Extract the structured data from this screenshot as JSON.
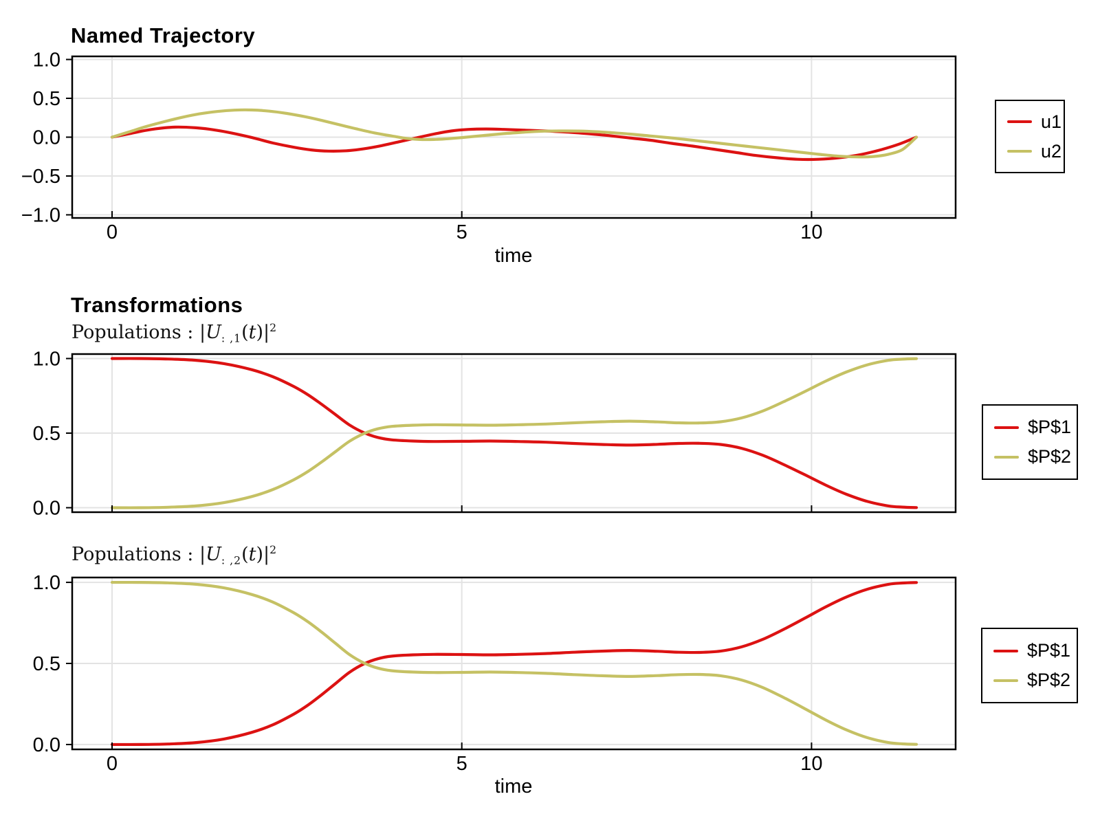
{
  "colors": {
    "red": "#dc1212",
    "olive": "#c5c164",
    "grid": "#e3e3e3",
    "spine": "#000000"
  },
  "panel1": {
    "title": "Named Trajectory",
    "xlabel": "time",
    "yticks": [
      "1.0",
      "0.5",
      "0.0",
      "−0.5",
      "−1.0"
    ],
    "xticks": [
      "0",
      "5",
      "10"
    ],
    "legend": [
      {
        "label": "u1",
        "color": "#dc1212"
      },
      {
        "label": "u2",
        "color": "#c5c164"
      }
    ]
  },
  "panel2": {
    "title": "Transformations",
    "subtitle": {
      "prefix": "Populations : ",
      "bar1": "|",
      "var": "U",
      "sub": ": ,1",
      "open": "(",
      "tvar": "t",
      "close": ")|",
      "sup": "2"
    },
    "yticks": [
      "1.0",
      "0.5",
      "0.0"
    ],
    "legend": [
      {
        "label": "$P$1",
        "color": "#dc1212"
      },
      {
        "label": "$P$2",
        "color": "#c5c164"
      }
    ]
  },
  "panel3": {
    "subtitle": {
      "prefix": "Populations : ",
      "bar1": "|",
      "var": "U",
      "sub": ": ,2",
      "open": "(",
      "tvar": "t",
      "close": ")|",
      "sup": "2"
    },
    "xlabel": "time",
    "yticks": [
      "1.0",
      "0.5",
      "0.0"
    ],
    "xticks": [
      "0",
      "5",
      "10"
    ],
    "legend": [
      {
        "label": "$P$1",
        "color": "#dc1212"
      },
      {
        "label": "$P$2",
        "color": "#c5c164"
      }
    ]
  },
  "chart_data": [
    {
      "type": "line",
      "title": "Named Trajectory",
      "xlabel": "time",
      "xlim": [
        -0.57,
        12.06
      ],
      "ylim": [
        -1.04,
        1.04
      ],
      "xticks": [
        0,
        5,
        10
      ],
      "yticks": [
        1.0,
        0.5,
        0.0,
        -0.5,
        -1.0
      ],
      "grid": true,
      "legend_position": "outer-right",
      "series": [
        {
          "name": "u1",
          "color": "#dc1212",
          "points": [
            [
              0,
              0
            ],
            [
              0.25,
              0.045
            ],
            [
              0.5,
              0.09
            ],
            [
              0.75,
              0.12
            ],
            [
              0.95,
              0.13
            ],
            [
              1.2,
              0.12
            ],
            [
              1.45,
              0.095
            ],
            [
              1.7,
              0.055
            ],
            [
              2,
              -0.005
            ],
            [
              2.3,
              -0.075
            ],
            [
              2.6,
              -0.13
            ],
            [
              2.85,
              -0.165
            ],
            [
              3.1,
              -0.18
            ],
            [
              3.35,
              -0.175
            ],
            [
              3.6,
              -0.15
            ],
            [
              3.85,
              -0.11
            ],
            [
              4.1,
              -0.06
            ],
            [
              4.35,
              -0.01
            ],
            [
              4.6,
              0.04
            ],
            [
              4.85,
              0.08
            ],
            [
              5.1,
              0.1
            ],
            [
              5.35,
              0.105
            ],
            [
              5.6,
              0.1
            ],
            [
              5.9,
              0.09
            ],
            [
              6.2,
              0.08
            ],
            [
              6.5,
              0.065
            ],
            [
              6.8,
              0.045
            ],
            [
              7.1,
              0.02
            ],
            [
              7.4,
              -0.01
            ],
            [
              7.7,
              -0.04
            ],
            [
              8,
              -0.08
            ],
            [
              8.3,
              -0.115
            ],
            [
              8.6,
              -0.155
            ],
            [
              8.9,
              -0.195
            ],
            [
              9.2,
              -0.235
            ],
            [
              9.5,
              -0.265
            ],
            [
              9.8,
              -0.285
            ],
            [
              10.1,
              -0.285
            ],
            [
              10.4,
              -0.265
            ],
            [
              10.7,
              -0.225
            ],
            [
              11,
              -0.16
            ],
            [
              11.25,
              -0.09
            ],
            [
              11.5,
              0
            ]
          ]
        },
        {
          "name": "u2",
          "color": "#c5c164",
          "points": [
            [
              0,
              0
            ],
            [
              0.25,
              0.07
            ],
            [
              0.5,
              0.14
            ],
            [
              0.75,
              0.2
            ],
            [
              1,
              0.255
            ],
            [
              1.25,
              0.3
            ],
            [
              1.5,
              0.33
            ],
            [
              1.75,
              0.348
            ],
            [
              2,
              0.35
            ],
            [
              2.25,
              0.335
            ],
            [
              2.5,
              0.305
            ],
            [
              2.75,
              0.265
            ],
            [
              3,
              0.215
            ],
            [
              3.25,
              0.16
            ],
            [
              3.5,
              0.105
            ],
            [
              3.75,
              0.055
            ],
            [
              4,
              0.015
            ],
            [
              4.2,
              -0.015
            ],
            [
              4.4,
              -0.03
            ],
            [
              4.6,
              -0.03
            ],
            [
              4.8,
              -0.02
            ],
            [
              5,
              -0.005
            ],
            [
              5.3,
              0.02
            ],
            [
              5.6,
              0.045
            ],
            [
              5.9,
              0.065
            ],
            [
              6.2,
              0.078
            ],
            [
              6.5,
              0.08
            ],
            [
              6.8,
              0.075
            ],
            [
              7.1,
              0.06
            ],
            [
              7.4,
              0.04
            ],
            [
              7.7,
              0.015
            ],
            [
              8,
              -0.01
            ],
            [
              8.3,
              -0.04
            ],
            [
              8.6,
              -0.07
            ],
            [
              8.9,
              -0.1
            ],
            [
              9.2,
              -0.13
            ],
            [
              9.5,
              -0.16
            ],
            [
              9.8,
              -0.19
            ],
            [
              10.1,
              -0.22
            ],
            [
              10.4,
              -0.245
            ],
            [
              10.7,
              -0.255
            ],
            [
              10.9,
              -0.248
            ],
            [
              11.1,
              -0.22
            ],
            [
              11.3,
              -0.16
            ],
            [
              11.5,
              0
            ]
          ]
        }
      ]
    },
    {
      "type": "line",
      "title": "Populations : |U_{:,1}(t)|^2",
      "xlim": [
        -0.57,
        12.06
      ],
      "ylim": [
        -0.03,
        1.03
      ],
      "xticks": [
        0,
        5,
        10
      ],
      "yticks": [
        1.0,
        0.5,
        0.0
      ],
      "grid": true,
      "legend_position": "outer-right",
      "series": [
        {
          "name": "$P$1",
          "color": "#dc1212",
          "points": [
            [
              0,
              1
            ],
            [
              0.4,
              1
            ],
            [
              0.8,
              0.997
            ],
            [
              1.2,
              0.988
            ],
            [
              1.6,
              0.966
            ],
            [
              2,
              0.925
            ],
            [
              2.3,
              0.878
            ],
            [
              2.6,
              0.812
            ],
            [
              2.8,
              0.757
            ],
            [
              3,
              0.692
            ],
            [
              3.2,
              0.622
            ],
            [
              3.4,
              0.553
            ],
            [
              3.6,
              0.503
            ],
            [
              3.8,
              0.471
            ],
            [
              4,
              0.455
            ],
            [
              4.3,
              0.447
            ],
            [
              4.6,
              0.444
            ],
            [
              5,
              0.445
            ],
            [
              5.4,
              0.447
            ],
            [
              5.8,
              0.444
            ],
            [
              6.2,
              0.439
            ],
            [
              6.6,
              0.431
            ],
            [
              7,
              0.424
            ],
            [
              7.4,
              0.42
            ],
            [
              7.8,
              0.425
            ],
            [
              8.1,
              0.431
            ],
            [
              8.4,
              0.432
            ],
            [
              8.7,
              0.424
            ],
            [
              9,
              0.398
            ],
            [
              9.3,
              0.352
            ],
            [
              9.6,
              0.29
            ],
            [
              9.9,
              0.222
            ],
            [
              10.2,
              0.152
            ],
            [
              10.5,
              0.09
            ],
            [
              10.8,
              0.042
            ],
            [
              11.1,
              0.012
            ],
            [
              11.3,
              0.004
            ],
            [
              11.5,
              0.001
            ]
          ]
        },
        {
          "name": "$P$2",
          "color": "#c5c164",
          "points": [
            [
              0,
              0
            ],
            [
              0.4,
              0
            ],
            [
              0.8,
              0.003
            ],
            [
              1.2,
              0.012
            ],
            [
              1.6,
              0.034
            ],
            [
              2,
              0.075
            ],
            [
              2.3,
              0.122
            ],
            [
              2.6,
              0.188
            ],
            [
              2.8,
              0.243
            ],
            [
              3,
              0.308
            ],
            [
              3.2,
              0.378
            ],
            [
              3.4,
              0.447
            ],
            [
              3.6,
              0.497
            ],
            [
              3.8,
              0.529
            ],
            [
              4,
              0.545
            ],
            [
              4.3,
              0.553
            ],
            [
              4.6,
              0.556
            ],
            [
              5,
              0.555
            ],
            [
              5.4,
              0.553
            ],
            [
              5.8,
              0.556
            ],
            [
              6.2,
              0.561
            ],
            [
              6.6,
              0.569
            ],
            [
              7,
              0.576
            ],
            [
              7.4,
              0.58
            ],
            [
              7.8,
              0.575
            ],
            [
              8.1,
              0.569
            ],
            [
              8.4,
              0.568
            ],
            [
              8.7,
              0.576
            ],
            [
              9,
              0.602
            ],
            [
              9.3,
              0.648
            ],
            [
              9.6,
              0.71
            ],
            [
              9.9,
              0.778
            ],
            [
              10.2,
              0.848
            ],
            [
              10.5,
              0.91
            ],
            [
              10.8,
              0.958
            ],
            [
              11.1,
              0.988
            ],
            [
              11.3,
              0.996
            ],
            [
              11.5,
              0.999
            ]
          ]
        }
      ]
    },
    {
      "type": "line",
      "title": "Populations : |U_{:,2}(t)|^2",
      "xlabel": "time",
      "xlim": [
        -0.57,
        12.06
      ],
      "ylim": [
        -0.03,
        1.03
      ],
      "xticks": [
        0,
        5,
        10
      ],
      "yticks": [
        1.0,
        0.5,
        0.0
      ],
      "grid": true,
      "legend_position": "outer-right",
      "series": [
        {
          "name": "$P$1",
          "color": "#dc1212",
          "points": [
            [
              0,
              0
            ],
            [
              0.4,
              0
            ],
            [
              0.8,
              0.003
            ],
            [
              1.2,
              0.012
            ],
            [
              1.6,
              0.034
            ],
            [
              2,
              0.075
            ],
            [
              2.3,
              0.122
            ],
            [
              2.6,
              0.188
            ],
            [
              2.8,
              0.243
            ],
            [
              3,
              0.308
            ],
            [
              3.2,
              0.378
            ],
            [
              3.4,
              0.447
            ],
            [
              3.6,
              0.497
            ],
            [
              3.8,
              0.529
            ],
            [
              4,
              0.545
            ],
            [
              4.3,
              0.553
            ],
            [
              4.6,
              0.556
            ],
            [
              5,
              0.555
            ],
            [
              5.4,
              0.553
            ],
            [
              5.8,
              0.556
            ],
            [
              6.2,
              0.561
            ],
            [
              6.6,
              0.569
            ],
            [
              7,
              0.576
            ],
            [
              7.4,
              0.58
            ],
            [
              7.8,
              0.575
            ],
            [
              8.1,
              0.569
            ],
            [
              8.4,
              0.568
            ],
            [
              8.7,
              0.576
            ],
            [
              9,
              0.602
            ],
            [
              9.3,
              0.648
            ],
            [
              9.6,
              0.71
            ],
            [
              9.9,
              0.778
            ],
            [
              10.2,
              0.848
            ],
            [
              10.5,
              0.91
            ],
            [
              10.8,
              0.958
            ],
            [
              11.1,
              0.988
            ],
            [
              11.3,
              0.996
            ],
            [
              11.5,
              0.999
            ]
          ]
        },
        {
          "name": "$P$2",
          "color": "#c5c164",
          "points": [
            [
              0,
              1
            ],
            [
              0.4,
              1
            ],
            [
              0.8,
              0.997
            ],
            [
              1.2,
              0.988
            ],
            [
              1.6,
              0.966
            ],
            [
              2,
              0.925
            ],
            [
              2.3,
              0.878
            ],
            [
              2.6,
              0.812
            ],
            [
              2.8,
              0.757
            ],
            [
              3,
              0.692
            ],
            [
              3.2,
              0.622
            ],
            [
              3.4,
              0.553
            ],
            [
              3.6,
              0.503
            ],
            [
              3.8,
              0.471
            ],
            [
              4,
              0.455
            ],
            [
              4.3,
              0.447
            ],
            [
              4.6,
              0.444
            ],
            [
              5,
              0.445
            ],
            [
              5.4,
              0.447
            ],
            [
              5.8,
              0.444
            ],
            [
              6.2,
              0.439
            ],
            [
              6.6,
              0.431
            ],
            [
              7,
              0.424
            ],
            [
              7.4,
              0.42
            ],
            [
              7.8,
              0.425
            ],
            [
              8.1,
              0.431
            ],
            [
              8.4,
              0.432
            ],
            [
              8.7,
              0.424
            ],
            [
              9,
              0.398
            ],
            [
              9.3,
              0.352
            ],
            [
              9.6,
              0.29
            ],
            [
              9.9,
              0.222
            ],
            [
              10.2,
              0.152
            ],
            [
              10.5,
              0.09
            ],
            [
              10.8,
              0.042
            ],
            [
              11.1,
              0.012
            ],
            [
              11.3,
              0.004
            ],
            [
              11.5,
              0.001
            ]
          ]
        }
      ]
    }
  ]
}
